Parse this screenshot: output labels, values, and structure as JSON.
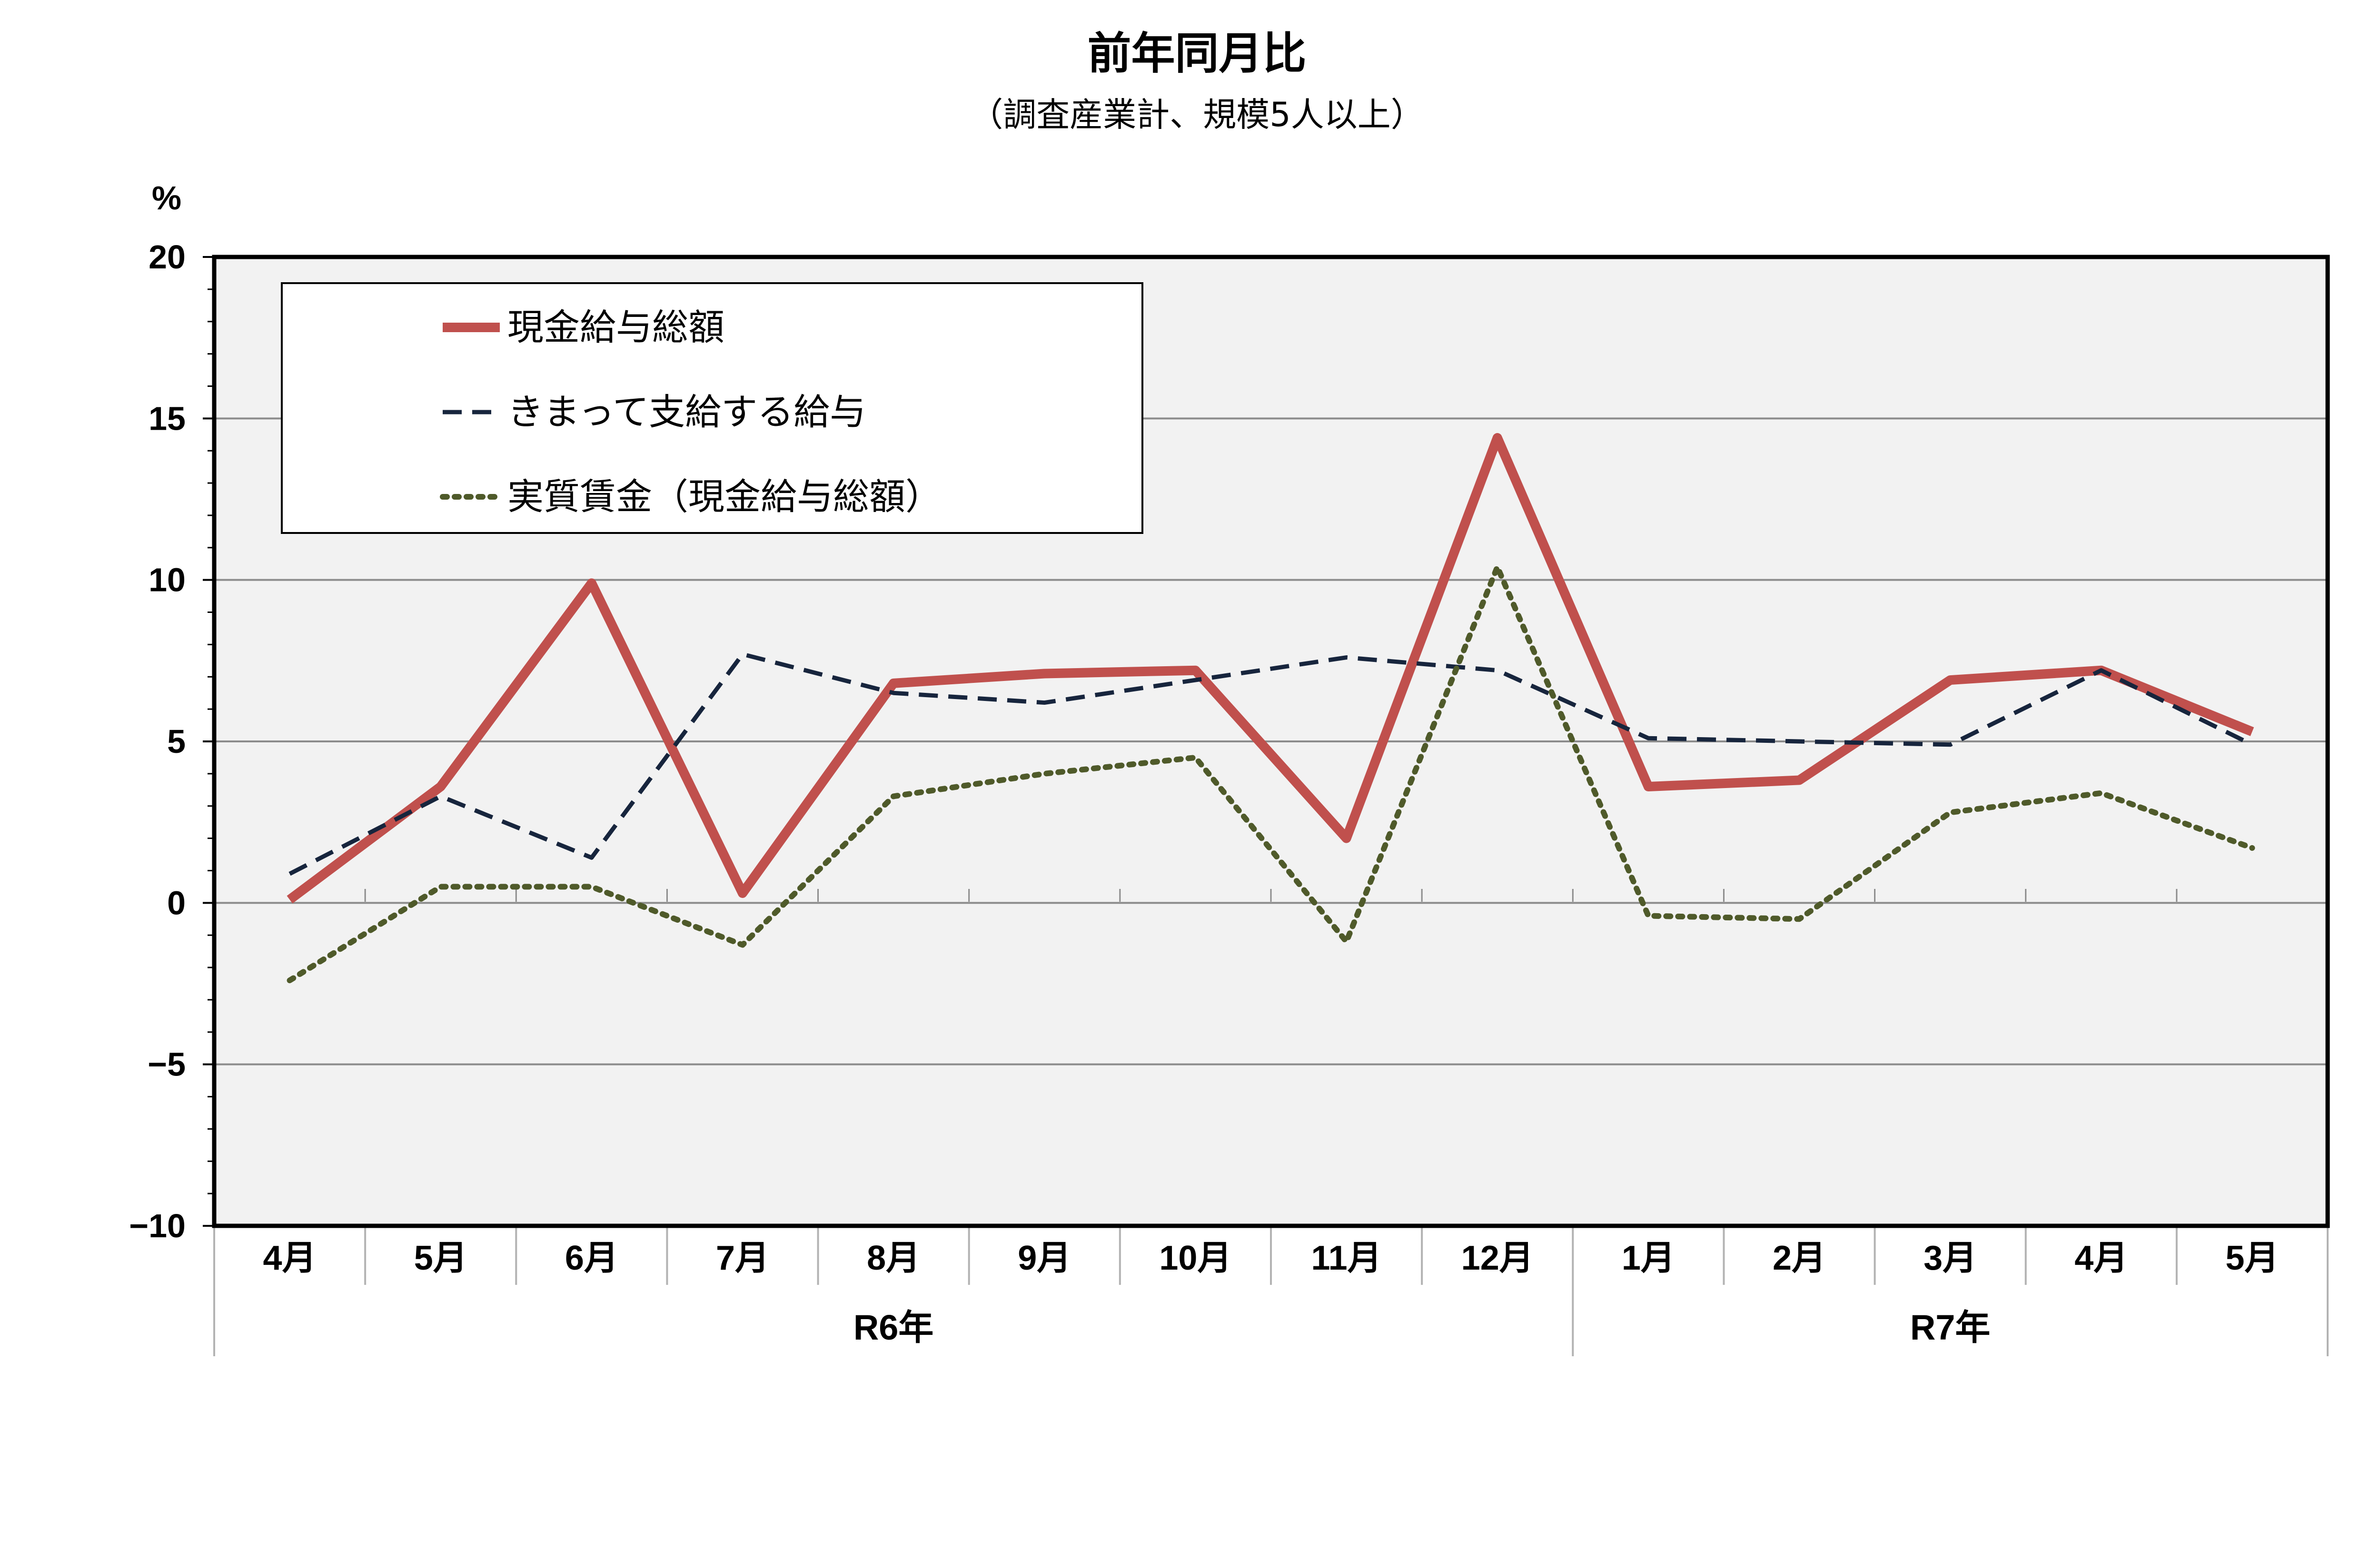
{
  "chart_data": {
    "type": "line",
    "title": "前年同月比",
    "subtitle": "（調査産業計、規模5人以上）",
    "y_unit": "%",
    "ylim": [
      -10,
      20
    ],
    "y_ticks": [
      "20",
      "15",
      "10",
      "5",
      "0",
      "−5",
      "−10"
    ],
    "y_tick_values": [
      20,
      15,
      10,
      5,
      0,
      -5,
      -10
    ],
    "categories": [
      "4月",
      "5月",
      "6月",
      "7月",
      "8月",
      "9月",
      "10月",
      "11月",
      "12月",
      "1月",
      "2月",
      "3月",
      "4月",
      "5月"
    ],
    "year_groups": [
      {
        "label": "R6年",
        "count": 9
      },
      {
        "label": "R7年",
        "count": 5
      }
    ],
    "grid": true,
    "legend_position": "top-left",
    "series": [
      {
        "name": "現金給与総額",
        "style": "solid",
        "color": "#c0504d",
        "values": [
          0.1,
          3.6,
          9.9,
          0.3,
          6.8,
          7.1,
          7.2,
          2.0,
          14.4,
          3.6,
          3.8,
          6.9,
          7.2,
          5.3
        ]
      },
      {
        "name": "きまって支給する給与",
        "style": "dashed",
        "color": "#17253d",
        "values": [
          0.9,
          3.3,
          1.4,
          7.7,
          6.5,
          6.2,
          6.9,
          7.6,
          7.2,
          5.1,
          5.0,
          4.9,
          7.2,
          4.9
        ]
      },
      {
        "name": "実質賃金（現金給与総額）",
        "style": "dotted",
        "color": "#4f5a2a",
        "values": [
          -2.4,
          0.5,
          0.5,
          -1.3,
          3.3,
          4.0,
          4.5,
          -1.2,
          10.4,
          -0.4,
          -0.5,
          2.8,
          3.4,
          1.7
        ]
      }
    ]
  }
}
